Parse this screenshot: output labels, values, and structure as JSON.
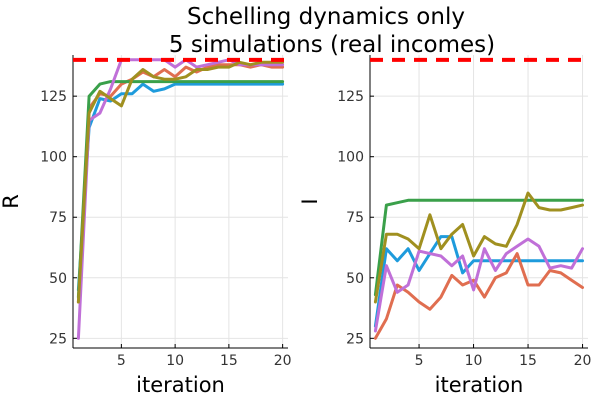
{
  "title_line1": "Schelling dynamics only",
  "title_line2": "5 simulations (real incomes)",
  "colors": [
    "#1e9bdc",
    "#e06e50",
    "#3aa04a",
    "#c070d8",
    "#a09020"
  ],
  "ref_color": "#ff0000",
  "chart_data": [
    {
      "type": "line",
      "xlabel": "iteration",
      "ylabel": "R",
      "xlim": [
        0.5,
        20.5
      ],
      "ylim": [
        21,
        142
      ],
      "xticks": [
        5,
        10,
        15,
        20
      ],
      "yticks": [
        25,
        50,
        75,
        100,
        125
      ],
      "grid": true,
      "reference_line": {
        "y": 140,
        "style": "dashed"
      },
      "x": [
        1,
        2,
        3,
        4,
        5,
        6,
        7,
        8,
        9,
        10,
        11,
        12,
        13,
        14,
        15,
        16,
        17,
        18,
        19,
        20
      ],
      "series": [
        {
          "values": [
            45,
            112,
            124,
            123,
            126,
            126,
            130,
            127,
            128,
            130,
            130,
            130,
            130,
            130,
            130,
            130,
            130,
            130,
            130,
            130
          ]
        },
        {
          "values": [
            40,
            120,
            126,
            125,
            130,
            132,
            135,
            133,
            136,
            133,
            137,
            135,
            137,
            138,
            138,
            138,
            137,
            138,
            137,
            137
          ]
        },
        {
          "values": [
            42,
            125,
            130,
            131,
            131,
            131,
            131,
            131,
            131,
            131,
            131,
            131,
            131,
            131,
            131,
            131,
            131,
            131,
            131,
            131
          ]
        },
        {
          "values": [
            25,
            115,
            118,
            128,
            140,
            140,
            140,
            140,
            140,
            137,
            140,
            137,
            138,
            139,
            140,
            138,
            138,
            138,
            138,
            138
          ]
        },
        {
          "values": [
            40,
            118,
            127,
            124,
            121,
            132,
            136,
            133,
            132,
            132,
            133,
            136,
            136,
            137,
            137,
            139,
            138,
            139,
            139,
            139
          ]
        }
      ]
    },
    {
      "type": "line",
      "xlabel": "iteration",
      "ylabel": "I",
      "xlim": [
        0.5,
        20.5
      ],
      "ylim": [
        21,
        142
      ],
      "xticks": [
        5,
        10,
        15,
        20
      ],
      "yticks": [
        25,
        50,
        75,
        100,
        125
      ],
      "grid": true,
      "reference_line": {
        "y": 140,
        "style": "dashed"
      },
      "x": [
        1,
        2,
        3,
        4,
        5,
        6,
        7,
        8,
        9,
        10,
        11,
        12,
        13,
        14,
        15,
        16,
        17,
        18,
        19,
        20
      ],
      "series": [
        {
          "values": [
            30,
            62,
            57,
            62,
            53,
            60,
            67,
            67,
            52,
            57,
            57,
            57,
            57,
            57,
            57,
            57,
            57,
            57,
            57,
            57
          ]
        },
        {
          "values": [
            25,
            33,
            47,
            44,
            40,
            37,
            42,
            51,
            47,
            49,
            42,
            50,
            52,
            60,
            47,
            47,
            53,
            52,
            49,
            46
          ]
        },
        {
          "values": [
            43,
            80,
            81,
            82,
            82,
            82,
            82,
            82,
            82,
            82,
            82,
            82,
            82,
            82,
            82,
            82,
            82,
            82,
            82,
            82
          ]
        },
        {
          "values": [
            28,
            55,
            44,
            47,
            61,
            60,
            59,
            55,
            59,
            45,
            62,
            53,
            60,
            63,
            66,
            63,
            54,
            55,
            54,
            62
          ]
        },
        {
          "values": [
            40,
            68,
            68,
            66,
            62,
            76,
            62,
            68,
            72,
            59,
            67,
            64,
            63,
            72,
            85,
            79,
            78,
            78,
            79,
            80
          ]
        }
      ]
    }
  ]
}
